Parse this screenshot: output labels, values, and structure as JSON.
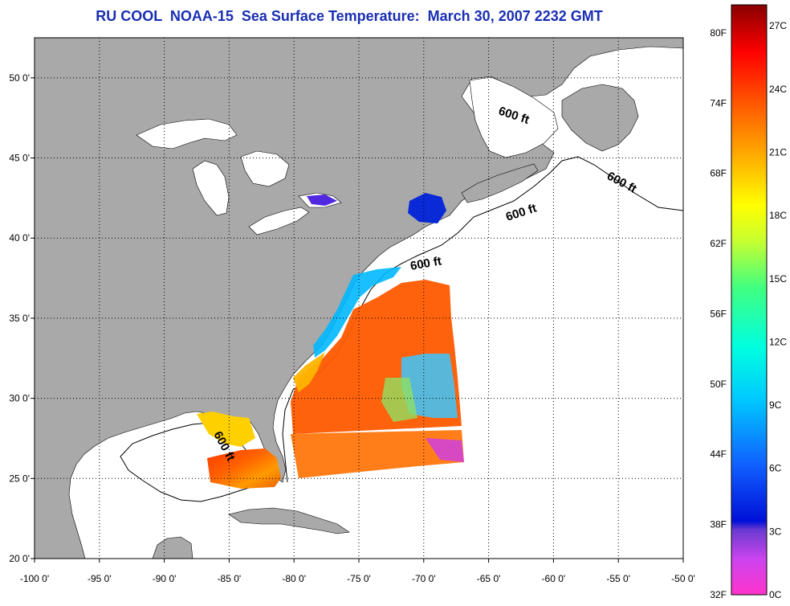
{
  "title": "RU COOL  NOAA-15  Sea Surface Temperature:  March 30, 2007 2232 GMT",
  "map": {
    "lon_range": [
      -100,
      -50
    ],
    "lat_range": [
      20,
      52.5
    ],
    "lon_ticks": [
      "-100 0'",
      "-95 0'",
      "-90 0'",
      "-85 0'",
      "-80 0'",
      "-75 0'",
      "-70 0'",
      "-65 0'",
      "-60 0'",
      "-55 0'",
      "-50 0'"
    ],
    "lat_ticks": [
      "20 0'",
      "25 0'",
      "30 0'",
      "35 0'",
      "40 0'",
      "45 0'",
      "50 0'"
    ],
    "grid": true,
    "contour_label": "600 ft",
    "colors": {
      "land": "#a9a9a9",
      "ocean": "#ffffff",
      "title": "#1a2fb3"
    }
  },
  "colorbar": {
    "fahrenheit_labels": [
      "80F",
      "74F",
      "68F",
      "62F",
      "56F",
      "50F",
      "44F",
      "38F",
      "32F"
    ],
    "celsius_labels": [
      "27C",
      "24C",
      "21C",
      "18C",
      "15C",
      "12C",
      "9C",
      "6C",
      "3C",
      "0C"
    ],
    "range_c": [
      0,
      28
    ]
  }
}
